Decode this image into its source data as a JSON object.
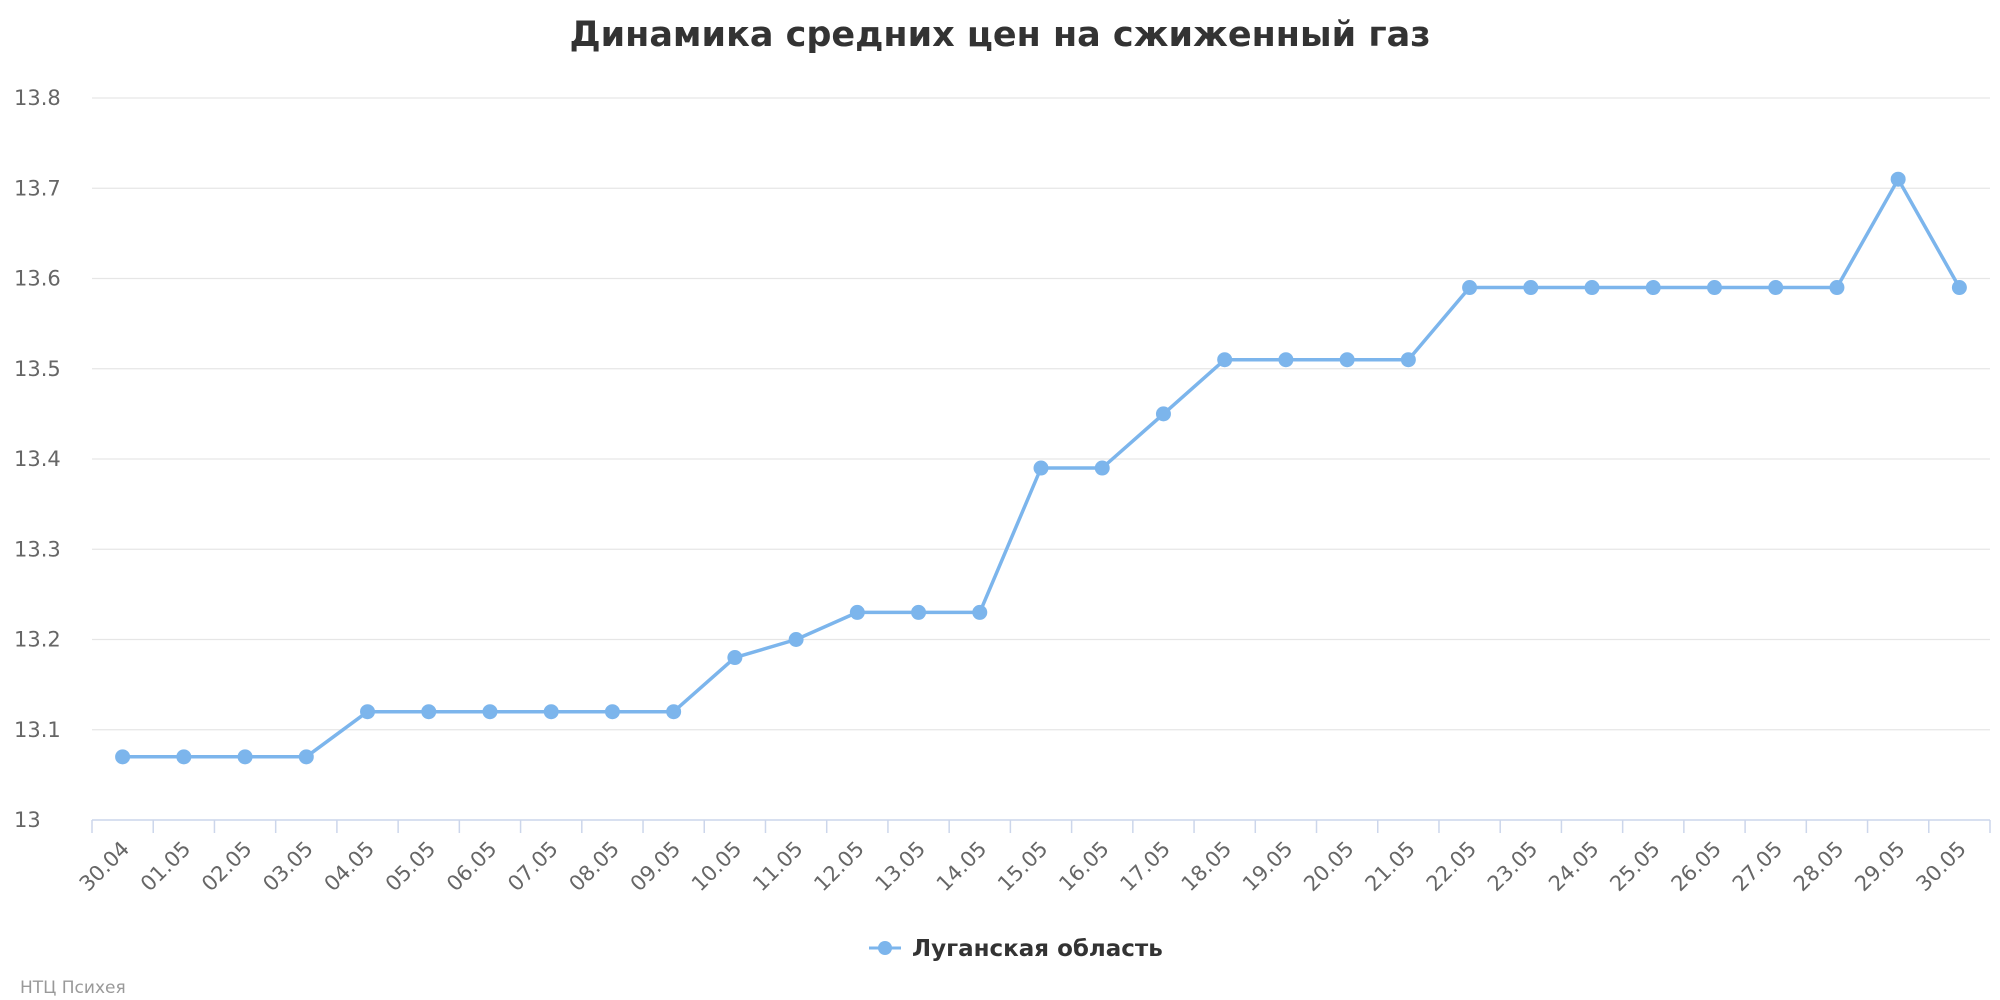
{
  "chart_data": {
    "type": "line",
    "title": "Динамика средних цен на сжиженный газ",
    "xlabel": "",
    "ylabel": "",
    "categories": [
      "30.04",
      "01.05",
      "02.05",
      "03.05",
      "04.05",
      "05.05",
      "06.05",
      "07.05",
      "08.05",
      "09.05",
      "10.05",
      "11.05",
      "12.05",
      "13.05",
      "14.05",
      "15.05",
      "16.05",
      "17.05",
      "18.05",
      "19.05",
      "20.05",
      "21.05",
      "22.05",
      "23.05",
      "24.05",
      "25.05",
      "26.05",
      "27.05",
      "28.05",
      "29.05",
      "30.05"
    ],
    "series": [
      {
        "name": "Луганская область",
        "values": [
          13.07,
          13.07,
          13.07,
          13.07,
          13.12,
          13.12,
          13.12,
          13.12,
          13.12,
          13.12,
          13.18,
          13.2,
          13.23,
          13.23,
          13.23,
          13.39,
          13.39,
          13.45,
          13.51,
          13.51,
          13.51,
          13.51,
          13.59,
          13.59,
          13.59,
          13.59,
          13.59,
          13.59,
          13.59,
          13.71,
          13.59
        ]
      }
    ],
    "ylim": [
      13,
      13.8
    ],
    "yticks": [
      "13",
      "13.1",
      "13.2",
      "13.3",
      "13.4",
      "13.5",
      "13.6",
      "13.7",
      "13.8"
    ],
    "grid": true,
    "legend_position": "bottom-center",
    "colors": {
      "series": "#7cb5ec",
      "grid": "#e6e6e6",
      "axis": "#ccd6eb"
    }
  },
  "credit": "НТЦ Психея"
}
